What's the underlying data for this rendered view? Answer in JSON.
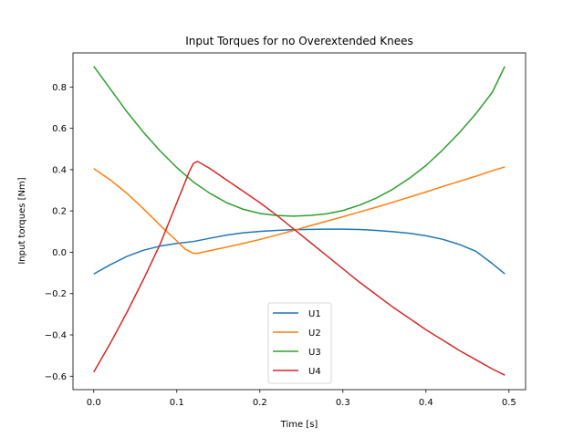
{
  "chart_data": {
    "type": "line",
    "title": "Input Torques for no Overextended Knees",
    "xlabel": "Time [s]",
    "ylabel": "Input torques [Nm]",
    "xlim": [
      -0.025,
      0.52
    ],
    "ylim": [
      -0.665,
      0.965
    ],
    "xticks": [
      0.0,
      0.1,
      0.2,
      0.3,
      0.4,
      0.5
    ],
    "xtick_labels": [
      "0.0",
      "0.1",
      "0.2",
      "0.3",
      "0.4",
      "0.5"
    ],
    "yticks": [
      -0.6,
      -0.4,
      -0.2,
      0.0,
      0.2,
      0.4,
      0.6,
      0.8
    ],
    "ytick_labels": [
      "−0.6",
      "−0.4",
      "−0.2",
      "0.0",
      "0.2",
      "0.4",
      "0.6",
      "0.8"
    ],
    "grid": false,
    "legend_position": "lower center",
    "series": [
      {
        "name": "U1",
        "color": "#1f77b4",
        "x": [
          0.0,
          0.02,
          0.04,
          0.06,
          0.08,
          0.1,
          0.12,
          0.14,
          0.16,
          0.18,
          0.2,
          0.22,
          0.24,
          0.26,
          0.28,
          0.3,
          0.32,
          0.34,
          0.36,
          0.38,
          0.4,
          0.42,
          0.44,
          0.46,
          0.48,
          0.495
        ],
        "y": [
          -0.105,
          -0.06,
          -0.02,
          0.01,
          0.03,
          0.043,
          0.052,
          0.068,
          0.083,
          0.094,
          0.101,
          0.106,
          0.109,
          0.111,
          0.112,
          0.112,
          0.11,
          0.106,
          0.1,
          0.092,
          0.08,
          0.063,
          0.038,
          0.005,
          -0.055,
          -0.105
        ]
      },
      {
        "name": "U2",
        "color": "#ff7f0e",
        "x": [
          0.0,
          0.02,
          0.04,
          0.06,
          0.08,
          0.1,
          0.11,
          0.12,
          0.125,
          0.14,
          0.16,
          0.18,
          0.2,
          0.22,
          0.24,
          0.26,
          0.28,
          0.3,
          0.32,
          0.34,
          0.36,
          0.38,
          0.4,
          0.42,
          0.44,
          0.46,
          0.48,
          0.495
        ],
        "y": [
          0.405,
          0.35,
          0.285,
          0.21,
          0.13,
          0.055,
          0.015,
          -0.005,
          -0.005,
          0.008,
          0.025,
          0.043,
          0.062,
          0.083,
          0.105,
          0.128,
          0.15,
          0.172,
          0.195,
          0.218,
          0.242,
          0.267,
          0.292,
          0.318,
          0.343,
          0.368,
          0.395,
          0.413
        ]
      },
      {
        "name": "U3",
        "color": "#2ca02c",
        "x": [
          0.0,
          0.02,
          0.04,
          0.06,
          0.08,
          0.1,
          0.12,
          0.14,
          0.16,
          0.18,
          0.2,
          0.22,
          0.24,
          0.26,
          0.28,
          0.3,
          0.32,
          0.34,
          0.36,
          0.38,
          0.4,
          0.42,
          0.44,
          0.46,
          0.48,
          0.495
        ],
        "y": [
          0.9,
          0.79,
          0.68,
          0.58,
          0.49,
          0.41,
          0.34,
          0.285,
          0.24,
          0.208,
          0.188,
          0.178,
          0.175,
          0.178,
          0.186,
          0.202,
          0.228,
          0.262,
          0.305,
          0.358,
          0.42,
          0.495,
          0.578,
          0.67,
          0.775,
          0.9
        ]
      },
      {
        "name": "U4",
        "color": "#d62728",
        "x": [
          0.0,
          0.02,
          0.04,
          0.06,
          0.08,
          0.1,
          0.115,
          0.12,
          0.125,
          0.14,
          0.16,
          0.18,
          0.2,
          0.22,
          0.24,
          0.26,
          0.28,
          0.3,
          0.32,
          0.34,
          0.36,
          0.38,
          0.4,
          0.42,
          0.44,
          0.46,
          0.48,
          0.495
        ],
        "y": [
          -0.58,
          -0.44,
          -0.29,
          -0.13,
          0.04,
          0.24,
          0.39,
          0.43,
          0.44,
          0.405,
          0.35,
          0.295,
          0.24,
          0.18,
          0.115,
          0.05,
          -0.015,
          -0.08,
          -0.145,
          -0.205,
          -0.265,
          -0.32,
          -0.375,
          -0.425,
          -0.475,
          -0.52,
          -0.565,
          -0.595
        ]
      }
    ]
  }
}
